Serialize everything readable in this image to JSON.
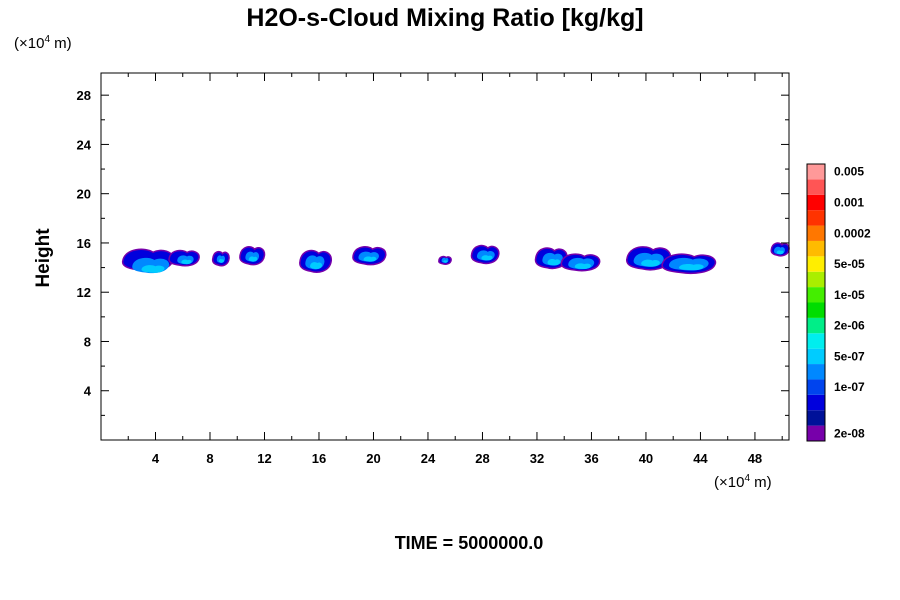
{
  "chart_data": {
    "type": "heatmap",
    "title": "H2O-s-Cloud Mixing Ratio [kg/kg]",
    "ylabel": "Height",
    "y_unit_prefix": "(×10",
    "y_unit_exp": "4",
    "y_unit_suffix": " m)",
    "x_unit_prefix": "(×10",
    "x_unit_exp": "4",
    "x_unit_suffix": " m)",
    "footer": "TIME = 5000000.0",
    "xlim": [
      0,
      50.5
    ],
    "ylim": [
      0,
      29.8
    ],
    "x_ticks": [
      4,
      8,
      12,
      16,
      20,
      24,
      28,
      32,
      36,
      40,
      44,
      48
    ],
    "y_ticks": [
      4,
      8,
      12,
      16,
      20,
      24,
      28
    ],
    "grid": false,
    "legend": "right colorbar",
    "colorbar": {
      "colors": [
        "#7700aa",
        "#001199",
        "#0000dd",
        "#0044ee",
        "#0088ff",
        "#00ccff",
        "#00eeee",
        "#00ee88",
        "#00dd00",
        "#44ee00",
        "#aaee00",
        "#ffee00",
        "#ffbb00",
        "#ff7700",
        "#ff3300",
        "#ff0000",
        "#ff5555",
        "#ff9999"
      ],
      "labels": [
        {
          "text": "2e-08",
          "index": 0
        },
        {
          "text": "1e-07",
          "index": 3
        },
        {
          "text": "5e-07",
          "index": 5
        },
        {
          "text": "2e-06",
          "index": 7
        },
        {
          "text": "1e-05",
          "index": 9
        },
        {
          "text": "5e-05",
          "index": 11
        },
        {
          "text": "0.0002",
          "index": 13
        },
        {
          "text": "0.001",
          "index": 15
        },
        {
          "text": "0.005",
          "index": 17
        }
      ]
    },
    "cloud_patches": [
      {
        "x": [
          1.6,
          5.3
        ],
        "y": [
          13.8,
          15.5
        ],
        "core": [
          2.3,
          5.0,
          13.6,
          14.8
        ]
      },
      {
        "x": [
          5.0,
          7.2
        ],
        "y": [
          14.2,
          15.4
        ],
        "core": [
          5.6,
          6.8,
          14.3,
          15.0
        ]
      },
      {
        "x": [
          8.2,
          9.4
        ],
        "y": [
          14.2,
          15.3
        ],
        "core": [
          8.5,
          9.1,
          14.4,
          15.0
        ]
      },
      {
        "x": [
          10.2,
          12.0
        ],
        "y": [
          14.3,
          15.7
        ],
        "core": [
          10.6,
          11.6,
          14.5,
          15.3
        ]
      },
      {
        "x": [
          14.6,
          16.9
        ],
        "y": [
          13.7,
          15.4
        ],
        "core": [
          15.0,
          16.4,
          13.9,
          15.0
        ]
      },
      {
        "x": [
          18.5,
          20.9
        ],
        "y": [
          14.3,
          15.7
        ],
        "core": [
          18.9,
          20.4,
          14.5,
          15.3
        ]
      },
      {
        "x": [
          24.8,
          25.7
        ],
        "y": [
          14.3,
          14.9
        ],
        "core": [
          25.0,
          25.5,
          14.4,
          14.8
        ]
      },
      {
        "x": [
          27.2,
          29.2
        ],
        "y": [
          14.4,
          15.8
        ],
        "core": [
          27.6,
          28.9,
          14.6,
          15.4
        ]
      },
      {
        "x": [
          31.9,
          34.2
        ],
        "y": [
          14.0,
          15.6
        ],
        "core": [
          32.4,
          33.9,
          14.2,
          15.2
        ]
      },
      {
        "x": [
          33.8,
          36.6
        ],
        "y": [
          13.8,
          15.1
        ],
        "core": [
          34.3,
          36.2,
          13.9,
          14.8
        ]
      },
      {
        "x": [
          38.6,
          41.8
        ],
        "y": [
          13.9,
          15.7
        ],
        "core": [
          39.1,
          41.3,
          14.1,
          15.2
        ]
      },
      {
        "x": [
          41.2,
          45.1
        ],
        "y": [
          13.6,
          15.1
        ],
        "core": [
          41.7,
          44.6,
          13.8,
          14.8
        ]
      },
      {
        "x": [
          49.2,
          50.5
        ],
        "y": [
          15.0,
          16.0
        ],
        "core": [
          49.4,
          50.2,
          15.1,
          15.7
        ]
      }
    ]
  }
}
